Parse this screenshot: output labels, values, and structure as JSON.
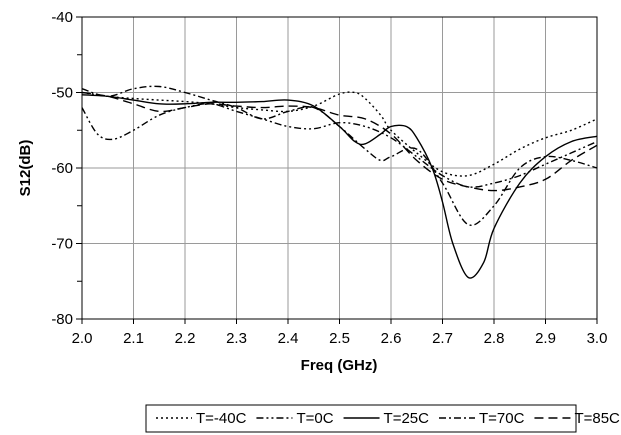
{
  "chart_data": {
    "type": "line",
    "title": "",
    "xlabel": "Freq (GHz)",
    "ylabel": "S12(dB)",
    "xlim": [
      2.0,
      3.0
    ],
    "ylim": [
      -80,
      -40
    ],
    "x_ticks": [
      "2.0",
      "2.1",
      "2.2",
      "2.3",
      "2.4",
      "2.5",
      "2.6",
      "2.7",
      "2.8",
      "2.9",
      "3.0"
    ],
    "y_ticks": [
      "-40",
      "-50",
      "-60",
      "-70",
      "-80"
    ],
    "grid": true,
    "legend_position": "bottom",
    "series": [
      {
        "name": "T=-40C",
        "style": "dotted",
        "x": [
          2.0,
          2.05,
          2.1,
          2.15,
          2.2,
          2.25,
          2.3,
          2.35,
          2.4,
          2.45,
          2.5,
          2.53,
          2.55,
          2.58,
          2.6,
          2.65,
          2.7,
          2.75,
          2.8,
          2.85,
          2.9,
          2.95,
          3.0
        ],
        "y": [
          -50,
          -50.5,
          -50.8,
          -51,
          -51.2,
          -51.5,
          -52,
          -52.3,
          -52.5,
          -51.8,
          -50.2,
          -50,
          -50.8,
          -53,
          -55,
          -58,
          -60.5,
          -61,
          -59.5,
          -57.5,
          -56,
          -55,
          -53.5
        ]
      },
      {
        "name": "T=0C",
        "style": "dash-dot-dot",
        "x": [
          2.0,
          2.03,
          2.06,
          2.1,
          2.15,
          2.2,
          2.25,
          2.3,
          2.35,
          2.4,
          2.45,
          2.5,
          2.55,
          2.6,
          2.65,
          2.7,
          2.75,
          2.8,
          2.85,
          2.9,
          2.95,
          3.0
        ],
        "y": [
          -52,
          -55.5,
          -56.2,
          -55,
          -53,
          -52,
          -51.5,
          -52.5,
          -53.5,
          -54.5,
          -54.8,
          -54,
          -54.5,
          -56,
          -58.5,
          -61,
          -62.5,
          -62,
          -61,
          -59.5,
          -58,
          -56.5
        ]
      },
      {
        "name": "T=25C",
        "style": "solid",
        "x": [
          2.0,
          2.05,
          2.1,
          2.15,
          2.2,
          2.25,
          2.3,
          2.35,
          2.4,
          2.45,
          2.5,
          2.53,
          2.55,
          2.58,
          2.6,
          2.63,
          2.65,
          2.68,
          2.7,
          2.72,
          2.75,
          2.78,
          2.8,
          2.85,
          2.9,
          2.95,
          3.0
        ],
        "y": [
          -50.3,
          -50.5,
          -51,
          -51.5,
          -51.5,
          -51.3,
          -51.3,
          -51.2,
          -51,
          -51.8,
          -54.5,
          -56.5,
          -56.8,
          -55.5,
          -54.5,
          -54.5,
          -56,
          -60,
          -64.5,
          -70,
          -74.5,
          -72.5,
          -68,
          -62,
          -58.5,
          -56.5,
          -55.8
        ]
      },
      {
        "name": "T=70C",
        "style": "dash-dot",
        "x": [
          2.0,
          2.05,
          2.1,
          2.15,
          2.2,
          2.25,
          2.3,
          2.35,
          2.4,
          2.45,
          2.5,
          2.55,
          2.58,
          2.6,
          2.65,
          2.7,
          2.75,
          2.8,
          2.85,
          2.9,
          2.95,
          3.0
        ],
        "y": [
          -49.5,
          -50.5,
          -49.5,
          -49.2,
          -50,
          -51,
          -52,
          -53.5,
          -52.5,
          -52,
          -54.5,
          -57.5,
          -59,
          -58.5,
          -57.5,
          -62,
          -67.5,
          -65,
          -60,
          -58.5,
          -59,
          -60
        ]
      },
      {
        "name": "T=85C",
        "style": "dashed",
        "x": [
          2.0,
          2.05,
          2.1,
          2.15,
          2.2,
          2.25,
          2.3,
          2.35,
          2.4,
          2.45,
          2.5,
          2.55,
          2.6,
          2.65,
          2.7,
          2.75,
          2.8,
          2.85,
          2.9,
          2.95,
          3.0
        ],
        "y": [
          -50,
          -50.5,
          -51.5,
          -52.5,
          -52,
          -51.5,
          -51.8,
          -52,
          -51.8,
          -52,
          -53,
          -53.5,
          -55.5,
          -59,
          -61.5,
          -62.5,
          -63,
          -62.5,
          -61.5,
          -59,
          -57
        ]
      }
    ]
  }
}
